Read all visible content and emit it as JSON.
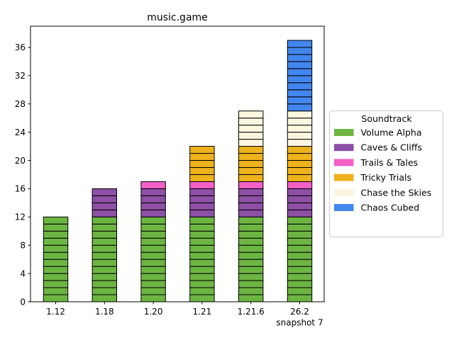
{
  "chart_data": {
    "type": "bar",
    "stacked": true,
    "segmented_blocks": true,
    "title": "music.game",
    "xlabel": "",
    "ylabel": "",
    "categories": [
      "1.12",
      "1.18",
      "1.20",
      "1.21",
      "1.21.6",
      "26.2\nsnapshot 7"
    ],
    "ylim": [
      0,
      39
    ],
    "yticks": [
      0,
      4,
      8,
      12,
      16,
      20,
      24,
      28,
      32,
      36
    ],
    "grid": false,
    "legend": {
      "title": "Soundtrack",
      "placement": "center-right outside"
    },
    "series": [
      {
        "name": "Volume Alpha",
        "color": "#6db543",
        "values": [
          12,
          12,
          12,
          12,
          12,
          12
        ]
      },
      {
        "name": "Caves & Cliffs",
        "color": "#8e4fa6",
        "values": [
          0,
          4,
          4,
          4,
          4,
          4
        ]
      },
      {
        "name": "Trails & Tales",
        "color": "#f35fc7",
        "values": [
          0,
          0,
          1,
          1,
          1,
          1
        ]
      },
      {
        "name": "Tricky Trials",
        "color": "#eeb21d",
        "values": [
          0,
          0,
          0,
          5,
          5,
          5
        ]
      },
      {
        "name": "Chase the Skies",
        "color": "#fcf6e1",
        "values": [
          0,
          0,
          0,
          0,
          5,
          5
        ]
      },
      {
        "name": "Chaos Cubed",
        "color": "#4286ef",
        "values": [
          0,
          0,
          0,
          0,
          0,
          10
        ]
      }
    ]
  }
}
